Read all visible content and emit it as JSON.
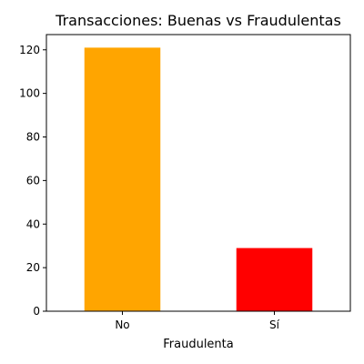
{
  "chart_data": {
    "type": "bar",
    "title": "Transacciones: Buenas vs Fraudulentas",
    "xlabel": "Fraudulenta",
    "ylabel": "",
    "categories": [
      "No",
      "Sí"
    ],
    "values": [
      121,
      29
    ],
    "bar_colors": [
      "#FFA500",
      "#FF0000"
    ],
    "ylim": [
      0,
      127
    ],
    "yticks": [
      0,
      20,
      40,
      60,
      80,
      100,
      120
    ],
    "grid": false,
    "legend": "none"
  }
}
